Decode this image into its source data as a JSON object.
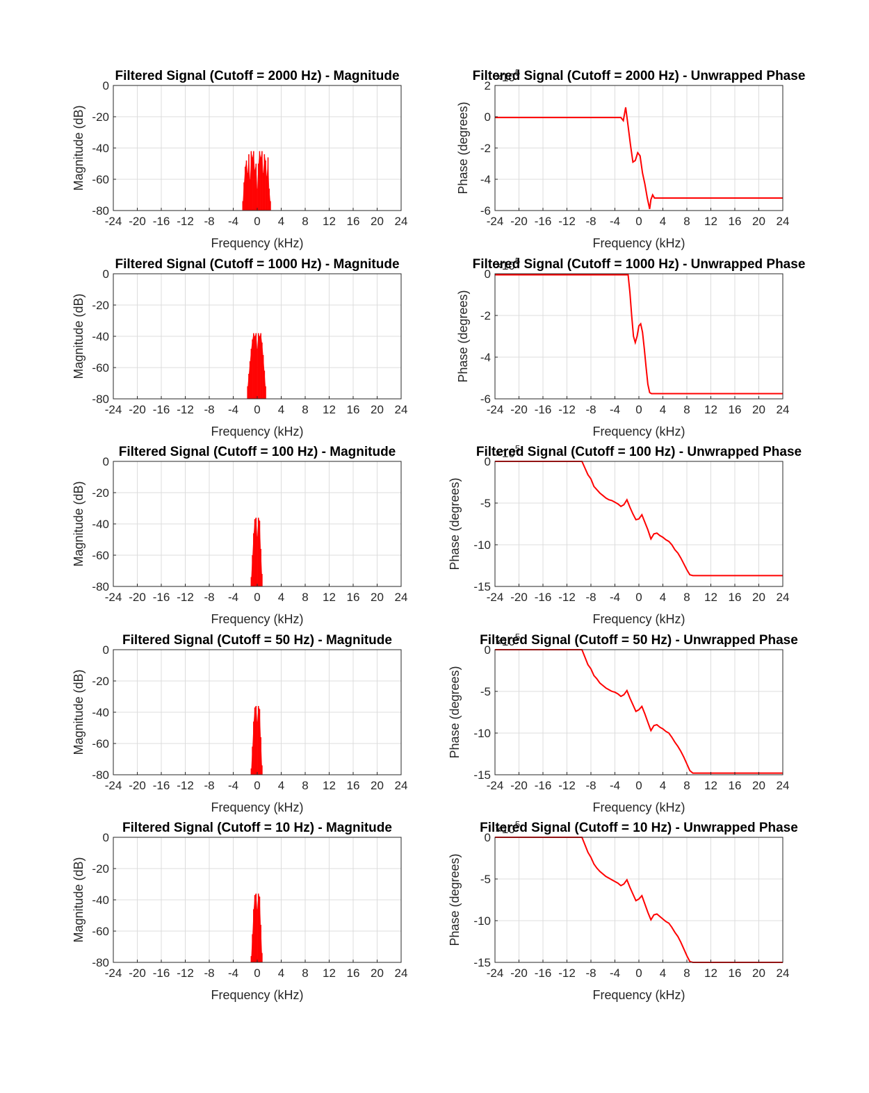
{
  "chart_data": [
    {
      "type": "bar",
      "title": "Filtered Signal (Cutoff = 2000 Hz) - Magnitude",
      "xlabel": "Frequency (kHz)",
      "ylabel": "Magnitude (dB)",
      "xlim": [
        -24,
        24
      ],
      "ylim": [
        -80,
        0
      ],
      "xticks": [
        "-24",
        "-20",
        "-16",
        "-12",
        "-8",
        "-4",
        "0",
        "4",
        "8",
        "12",
        "16",
        "20",
        "24"
      ],
      "yticks": [
        "-80",
        "-60",
        "-40",
        "-20",
        "0"
      ],
      "grid": true,
      "color": "#ff0000",
      "series": [
        {
          "x": [
            -2.4,
            -2.2,
            -2.0,
            -1.8,
            -1.6,
            -1.4,
            -1.2,
            -1.0,
            -0.8,
            -0.6,
            -0.4,
            -0.2,
            0,
            0.2,
            0.4,
            0.6,
            0.8,
            1.0,
            1.2,
            1.4,
            1.6,
            1.8,
            2.0,
            2.2
          ],
          "values": [
            -74,
            -62,
            -52,
            -48,
            -56,
            -44,
            -60,
            -42,
            -46,
            -42,
            -54,
            -50,
            -66,
            -50,
            -42,
            -46,
            -42,
            -56,
            -44,
            -48,
            -58,
            -46,
            -66,
            -74
          ]
        }
      ]
    },
    {
      "type": "line",
      "title": "Filtered Signal (Cutoff = 2000 Hz) - Unwrapped Phase",
      "xlabel": "Frequency (kHz)",
      "ylabel": "Phase (degrees)",
      "xlim": [
        -24,
        24
      ],
      "ylim": [
        -6,
        2
      ],
      "exponent": "5",
      "xticks": [
        "-24",
        "-20",
        "-16",
        "-12",
        "-8",
        "-4",
        "0",
        "4",
        "8",
        "12",
        "16",
        "20",
        "24"
      ],
      "yticks": [
        "-6",
        "-4",
        "-2",
        "0",
        "2"
      ],
      "grid": true,
      "color": "#ff0000",
      "series": [
        {
          "x": [
            -24,
            -3,
            -2.6,
            -2.2,
            -1.8,
            -1.4,
            -1.0,
            -0.6,
            -0.2,
            0.2,
            0.6,
            1.0,
            1.4,
            1.8,
            2.0,
            2.3,
            2.6,
            3.0,
            24
          ],
          "y": [
            -0.05,
            -0.05,
            -0.25,
            0.6,
            -0.6,
            -1.8,
            -2.9,
            -2.8,
            -2.3,
            -2.5,
            -3.6,
            -4.3,
            -5.2,
            -5.9,
            -5.3,
            -5.0,
            -5.2,
            -5.2,
            -5.2
          ]
        }
      ]
    },
    {
      "type": "bar",
      "title": "Filtered Signal (Cutoff = 1000 Hz) - Magnitude",
      "xlabel": "Frequency (kHz)",
      "ylabel": "Magnitude (dB)",
      "xlim": [
        -24,
        24
      ],
      "ylim": [
        -80,
        0
      ],
      "xticks": [
        "-24",
        "-20",
        "-16",
        "-12",
        "-8",
        "-4",
        "0",
        "4",
        "8",
        "12",
        "16",
        "20",
        "24"
      ],
      "yticks": [
        "-80",
        "-60",
        "-40",
        "-20",
        "0"
      ],
      "grid": true,
      "color": "#ff0000",
      "series": [
        {
          "x": [
            -1.6,
            -1.4,
            -1.2,
            -1.0,
            -0.8,
            -0.6,
            -0.4,
            -0.2,
            0,
            0.2,
            0.4,
            0.6,
            0.8,
            1.0,
            1.2,
            1.4
          ],
          "values": [
            -72,
            -64,
            -56,
            -48,
            -42,
            -38,
            -40,
            -38,
            -48,
            -38,
            -40,
            -38,
            -44,
            -52,
            -62,
            -72
          ]
        }
      ]
    },
    {
      "type": "line",
      "title": "Filtered Signal (Cutoff = 1000 Hz) - Unwrapped Phase",
      "xlabel": "Frequency (kHz)",
      "ylabel": "Phase (degrees)",
      "xlim": [
        -24,
        24
      ],
      "ylim": [
        -6,
        0
      ],
      "exponent": "5",
      "xticks": [
        "-24",
        "-20",
        "-16",
        "-12",
        "-8",
        "-4",
        "0",
        "4",
        "8",
        "12",
        "16",
        "20",
        "24"
      ],
      "yticks": [
        "-6",
        "-4",
        "-2",
        "0"
      ],
      "grid": true,
      "color": "#ff0000",
      "series": [
        {
          "x": [
            -24,
            -1.8,
            -1.5,
            -1.2,
            -0.9,
            -0.6,
            -0.3,
            0,
            0.3,
            0.6,
            0.9,
            1.2,
            1.5,
            1.8,
            2.1,
            24
          ],
          "y": [
            -0.05,
            -0.05,
            -0.9,
            -2.0,
            -3.0,
            -3.3,
            -3.0,
            -2.5,
            -2.4,
            -2.8,
            -3.6,
            -4.5,
            -5.3,
            -5.7,
            -5.75,
            -5.75
          ]
        }
      ]
    },
    {
      "type": "bar",
      "title": "Filtered Signal (Cutoff = 100 Hz) - Magnitude",
      "xlabel": "Frequency (kHz)",
      "ylabel": "Magnitude (dB)",
      "xlim": [
        -24,
        24
      ],
      "ylim": [
        -80,
        0
      ],
      "xticks": [
        "-24",
        "-20",
        "-16",
        "-12",
        "-8",
        "-4",
        "0",
        "4",
        "8",
        "12",
        "16",
        "20",
        "24"
      ],
      "yticks": [
        "-80",
        "-60",
        "-40",
        "-20",
        "0"
      ],
      "grid": true,
      "color": "#ff0000",
      "series": [
        {
          "x": [
            -1.0,
            -0.8,
            -0.6,
            -0.4,
            -0.2,
            0,
            0.2,
            0.4,
            0.6,
            0.8
          ],
          "values": [
            -74,
            -60,
            -46,
            -37,
            -36,
            -48,
            -36,
            -38,
            -56,
            -72
          ]
        }
      ]
    },
    {
      "type": "line",
      "title": "Filtered Signal (Cutoff = 100 Hz) - Unwrapped Phase",
      "xlabel": "Frequency (kHz)",
      "ylabel": "Phase (degrees)",
      "xlim": [
        -24,
        24
      ],
      "ylim": [
        -15,
        0
      ],
      "exponent": "5",
      "xticks": [
        "-24",
        "-20",
        "-16",
        "-12",
        "-8",
        "-4",
        "0",
        "4",
        "8",
        "12",
        "16",
        "20",
        "24"
      ],
      "yticks": [
        "-15",
        "-10",
        "-5",
        "0"
      ],
      "grid": true,
      "color": "#ff0000",
      "series": [
        {
          "x": [
            -24,
            -9.5,
            -9,
            -8.5,
            -8,
            -7.5,
            -7,
            -6.5,
            -6,
            -5.5,
            -5,
            -4.5,
            -4,
            -3.5,
            -3,
            -2.5,
            -2,
            -1.5,
            -1,
            -0.5,
            0,
            0.5,
            1,
            1.5,
            2,
            2.5,
            3,
            3.5,
            4,
            4.5,
            5,
            5.5,
            6,
            6.5,
            7,
            7.5,
            8,
            8.5,
            9,
            24
          ],
          "y": [
            0,
            0,
            -0.8,
            -1.6,
            -2.1,
            -3.0,
            -3.4,
            -3.8,
            -4.1,
            -4.4,
            -4.6,
            -4.7,
            -4.9,
            -5.1,
            -5.4,
            -5.2,
            -4.6,
            -5.5,
            -6.3,
            -7.0,
            -6.9,
            -6.4,
            -7.3,
            -8.2,
            -9.3,
            -8.7,
            -8.6,
            -8.9,
            -9.1,
            -9.4,
            -9.6,
            -10.0,
            -10.6,
            -11.0,
            -11.6,
            -12.3,
            -13.0,
            -13.6,
            -13.7,
            -13.7
          ]
        }
      ]
    },
    {
      "type": "bar",
      "title": "Filtered Signal (Cutoff = 50 Hz) - Magnitude",
      "xlabel": "Frequency (kHz)",
      "ylabel": "Magnitude (dB)",
      "xlim": [
        -24,
        24
      ],
      "ylim": [
        -80,
        0
      ],
      "xticks": [
        "-24",
        "-20",
        "-16",
        "-12",
        "-8",
        "-4",
        "0",
        "4",
        "8",
        "12",
        "16",
        "20",
        "24"
      ],
      "yticks": [
        "-80",
        "-60",
        "-40",
        "-20",
        "0"
      ],
      "grid": true,
      "color": "#ff0000",
      "series": [
        {
          "x": [
            -1.0,
            -0.8,
            -0.6,
            -0.4,
            -0.2,
            0,
            0.2,
            0.4,
            0.6,
            0.8
          ],
          "values": [
            -76,
            -62,
            -46,
            -37,
            -36,
            -46,
            -36,
            -38,
            -56,
            -74
          ]
        }
      ]
    },
    {
      "type": "line",
      "title": "Filtered Signal (Cutoff = 50 Hz) - Unwrapped Phase",
      "xlabel": "Frequency (kHz)",
      "ylabel": "Phase (degrees)",
      "xlim": [
        -24,
        24
      ],
      "ylim": [
        -15,
        0
      ],
      "exponent": "5",
      "xticks": [
        "-24",
        "-20",
        "-16",
        "-12",
        "-8",
        "-4",
        "0",
        "4",
        "8",
        "12",
        "16",
        "20",
        "24"
      ],
      "yticks": [
        "-15",
        "-10",
        "-5",
        "0"
      ],
      "grid": true,
      "color": "#ff0000",
      "series": [
        {
          "x": [
            -24,
            -9.5,
            -9,
            -8.5,
            -8,
            -7.5,
            -7,
            -6.5,
            -6,
            -5.5,
            -5,
            -4.5,
            -4,
            -3.5,
            -3,
            -2.5,
            -2,
            -1.5,
            -1,
            -0.5,
            0,
            0.5,
            1,
            1.5,
            2,
            2.5,
            3,
            3.5,
            4,
            4.5,
            5,
            5.5,
            6,
            6.5,
            7,
            7.5,
            8,
            8.5,
            9,
            24
          ],
          "y": [
            0,
            0,
            -0.9,
            -1.8,
            -2.3,
            -3.1,
            -3.5,
            -4.0,
            -4.3,
            -4.6,
            -4.8,
            -5.0,
            -5.1,
            -5.3,
            -5.6,
            -5.4,
            -4.9,
            -5.8,
            -6.6,
            -7.4,
            -7.2,
            -6.8,
            -7.7,
            -8.7,
            -9.7,
            -9.1,
            -9.0,
            -9.3,
            -9.5,
            -9.8,
            -10.0,
            -10.5,
            -11.1,
            -11.6,
            -12.2,
            -12.9,
            -13.7,
            -14.5,
            -14.8,
            -14.8
          ]
        }
      ]
    },
    {
      "type": "bar",
      "title": "Filtered Signal (Cutoff = 10 Hz) - Magnitude",
      "xlabel": "Frequency (kHz)",
      "ylabel": "Magnitude (dB)",
      "xlim": [
        -24,
        24
      ],
      "ylim": [
        -80,
        0
      ],
      "xticks": [
        "-24",
        "-20",
        "-16",
        "-12",
        "-8",
        "-4",
        "0",
        "4",
        "8",
        "12",
        "16",
        "20",
        "24"
      ],
      "yticks": [
        "-80",
        "-60",
        "-40",
        "-20",
        "0"
      ],
      "grid": true,
      "color": "#ff0000",
      "series": [
        {
          "x": [
            -1.0,
            -0.8,
            -0.6,
            -0.4,
            -0.2,
            0,
            0.2,
            0.4,
            0.6,
            0.8
          ],
          "values": [
            -76,
            -62,
            -46,
            -37,
            -36,
            -46,
            -36,
            -38,
            -56,
            -74
          ]
        }
      ]
    },
    {
      "type": "line",
      "title": "Filtered Signal (Cutoff = 10 Hz) - Unwrapped Phase",
      "xlabel": "Frequency (kHz)",
      "ylabel": "Phase (degrees)",
      "xlim": [
        -24,
        24
      ],
      "ylim": [
        -15,
        0
      ],
      "exponent": "5",
      "xticks": [
        "-24",
        "-20",
        "-16",
        "-12",
        "-8",
        "-4",
        "0",
        "4",
        "8",
        "12",
        "16",
        "20",
        "24"
      ],
      "yticks": [
        "-15",
        "-10",
        "-5",
        "0"
      ],
      "grid": true,
      "color": "#ff0000",
      "series": [
        {
          "x": [
            -24,
            -9.5,
            -9,
            -8.5,
            -8,
            -7.5,
            -7,
            -6.5,
            -6,
            -5.5,
            -5,
            -4.5,
            -4,
            -3.5,
            -3,
            -2.5,
            -2,
            -1.5,
            -1,
            -0.5,
            0,
            0.5,
            1,
            1.5,
            2,
            2.5,
            3,
            3.5,
            4,
            4.5,
            5,
            5.5,
            6,
            6.5,
            7,
            7.5,
            8,
            8.5,
            9,
            24
          ],
          "y": [
            0,
            0,
            -0.9,
            -1.8,
            -2.4,
            -3.2,
            -3.7,
            -4.1,
            -4.4,
            -4.7,
            -4.9,
            -5.1,
            -5.3,
            -5.5,
            -5.8,
            -5.6,
            -5.1,
            -6.0,
            -6.8,
            -7.6,
            -7.4,
            -7.0,
            -8.0,
            -9.0,
            -9.9,
            -9.3,
            -9.2,
            -9.5,
            -9.8,
            -10.1,
            -10.3,
            -10.8,
            -11.4,
            -11.9,
            -12.6,
            -13.4,
            -14.2,
            -14.9,
            -15.0,
            -15.0
          ]
        }
      ]
    }
  ]
}
